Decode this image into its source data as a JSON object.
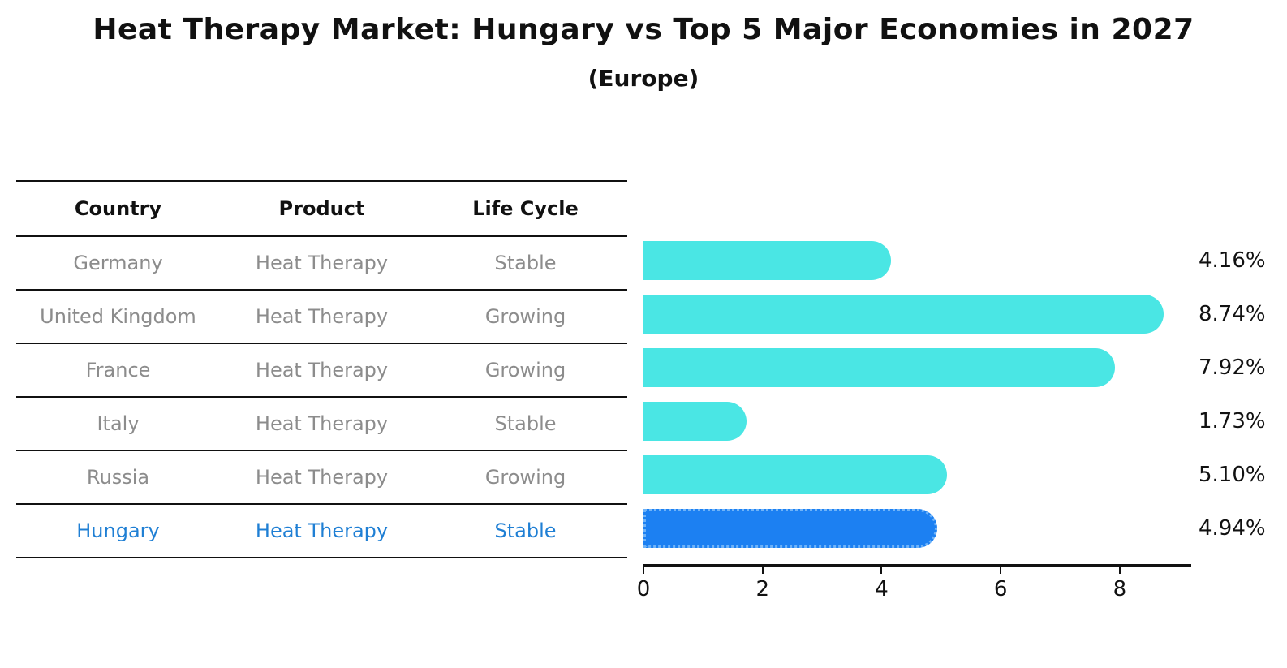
{
  "header": {
    "title": "Heat Therapy Market: Hungary vs Top 5 Major Economies in 2027",
    "subtitle": "(Europe)"
  },
  "table": {
    "columns": [
      "Country",
      "Product",
      "Life Cycle"
    ],
    "rows": [
      {
        "country": "Germany",
        "product": "Heat Therapy",
        "life_cycle": "Stable",
        "highlighted": false
      },
      {
        "country": "United Kingdom",
        "product": "Heat Therapy",
        "life_cycle": "Growing",
        "highlighted": false
      },
      {
        "country": "France",
        "product": "Heat Therapy",
        "life_cycle": "Growing",
        "highlighted": false
      },
      {
        "country": "Italy",
        "product": "Heat Therapy",
        "life_cycle": "Stable",
        "highlighted": false
      },
      {
        "country": "Russia",
        "product": "Heat Therapy",
        "life_cycle": "Growing",
        "highlighted": false
      },
      {
        "country": "Hungary",
        "product": "Heat Therapy",
        "life_cycle": "Stable",
        "highlighted": true
      }
    ]
  },
  "chart_data": {
    "type": "bar",
    "orientation": "horizontal",
    "title": "Heat Therapy Market: Hungary vs Top 5 Major Economies in 2027",
    "subtitle": "(Europe)",
    "categories": [
      "Germany",
      "United Kingdom",
      "France",
      "Italy",
      "Russia",
      "Hungary"
    ],
    "values": [
      4.16,
      8.74,
      7.92,
      1.73,
      5.1,
      4.94
    ],
    "value_labels": [
      "4.16%",
      "8.74%",
      "7.92%",
      "1.73%",
      "5.10%",
      "4.94%"
    ],
    "x_ticks": [
      0,
      2,
      4,
      6,
      8
    ],
    "xlim": [
      0,
      9.2
    ],
    "grid": false,
    "legend": null,
    "highlight_category": "Hungary",
    "colors": {
      "bar": "#4AE6E4",
      "highlight_bar": "#1C80F2",
      "highlight_bar_border": "#6FB3F8",
      "highlight_text": "#1F7FD4",
      "row_text": "#8C8C8C",
      "axis": "#111111"
    }
  }
}
